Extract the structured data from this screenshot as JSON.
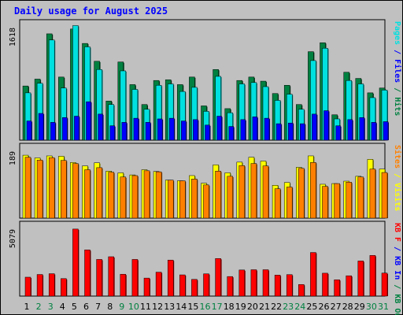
{
  "chart_data": [
    {
      "type": "bar",
      "title": "Daily usage for August 2025",
      "categories": [
        "1",
        "2",
        "3",
        "4",
        "5",
        "6",
        "7",
        "8",
        "9",
        "10",
        "11",
        "12",
        "13",
        "14",
        "15",
        "16",
        "17",
        "18",
        "19",
        "20",
        "21",
        "22",
        "23",
        "24",
        "25",
        "26",
        "27",
        "28",
        "29",
        "30",
        "31"
      ],
      "weekend_days": [
        "2",
        "3",
        "9",
        "10",
        "16",
        "17",
        "23",
        "24",
        "30",
        "31"
      ],
      "ymax_label": "1618",
      "ylim": [
        0,
        1618
      ],
      "axis_label": [
        "Pages",
        "Files",
        "Hits"
      ],
      "series": [
        {
          "name": "Hits",
          "color": "#008040",
          "values": [
            790,
            890,
            1550,
            920,
            1620,
            1410,
            1150,
            570,
            1140,
            810,
            520,
            870,
            880,
            810,
            920,
            500,
            1030,
            460,
            870,
            920,
            860,
            680,
            800,
            520,
            1290,
            1420,
            370,
            990,
            900,
            690,
            760
          ]
        },
        {
          "name": "Files",
          "color": "#00e0e0",
          "values": [
            690,
            830,
            1460,
            760,
            1670,
            1360,
            1030,
            520,
            1010,
            740,
            450,
            800,
            820,
            710,
            770,
            420,
            930,
            400,
            820,
            840,
            780,
            580,
            670,
            450,
            1160,
            1340,
            310,
            870,
            820,
            620,
            730
          ]
        },
        {
          "name": "Pages",
          "color": "#0000ff",
          "values": [
            280,
            390,
            260,
            330,
            350,
            560,
            380,
            210,
            260,
            320,
            260,
            310,
            320,
            280,
            300,
            220,
            350,
            200,
            300,
            340,
            320,
            240,
            250,
            240,
            380,
            430,
            210,
            300,
            330,
            260,
            270
          ]
        }
      ]
    },
    {
      "type": "bar",
      "ymax_label": "189",
      "ylim": [
        0,
        189
      ],
      "axis_label": [
        "Sites",
        "Visits"
      ],
      "series": [
        {
          "name": "Visits",
          "color": "#ffff00",
          "values": [
            182,
            174,
            180,
            179,
            161,
            151,
            160,
            136,
            131,
            125,
            140,
            135,
            110,
            108,
            123,
            101,
            154,
            131,
            162,
            176,
            165,
            95,
            103,
            147,
            180,
            98,
            100,
            107,
            121,
            170,
            142
          ]
        },
        {
          "name": "Sites",
          "color": "#ff8000",
          "values": [
            176,
            168,
            175,
            167,
            158,
            140,
            146,
            133,
            119,
            123,
            137,
            134,
            110,
            108,
            113,
            96,
            136,
            121,
            152,
            158,
            151,
            85,
            90,
            144,
            161,
            92,
            100,
            104,
            119,
            142,
            132
          ]
        }
      ]
    },
    {
      "type": "bar",
      "ymax_label": "5079",
      "ylim": [
        0,
        5079
      ],
      "axis_label": [
        "KB F",
        "KB In",
        "KB Out"
      ],
      "series": [
        {
          "name": "KB F",
          "color": "#ff0000",
          "values": [
            1470,
            1680,
            1740,
            1360,
            5210,
            3590,
            2850,
            3060,
            1700,
            2850,
            1400,
            1860,
            2800,
            1650,
            1300,
            1730,
            2920,
            1520,
            2030,
            2050,
            2050,
            1630,
            1670,
            900,
            3390,
            1780,
            1270,
            1580,
            2730,
            3160,
            1790
          ]
        }
      ]
    }
  ],
  "colors": {
    "background": "#c0c0c0",
    "title": "#0000ff",
    "grid": "#000000"
  }
}
